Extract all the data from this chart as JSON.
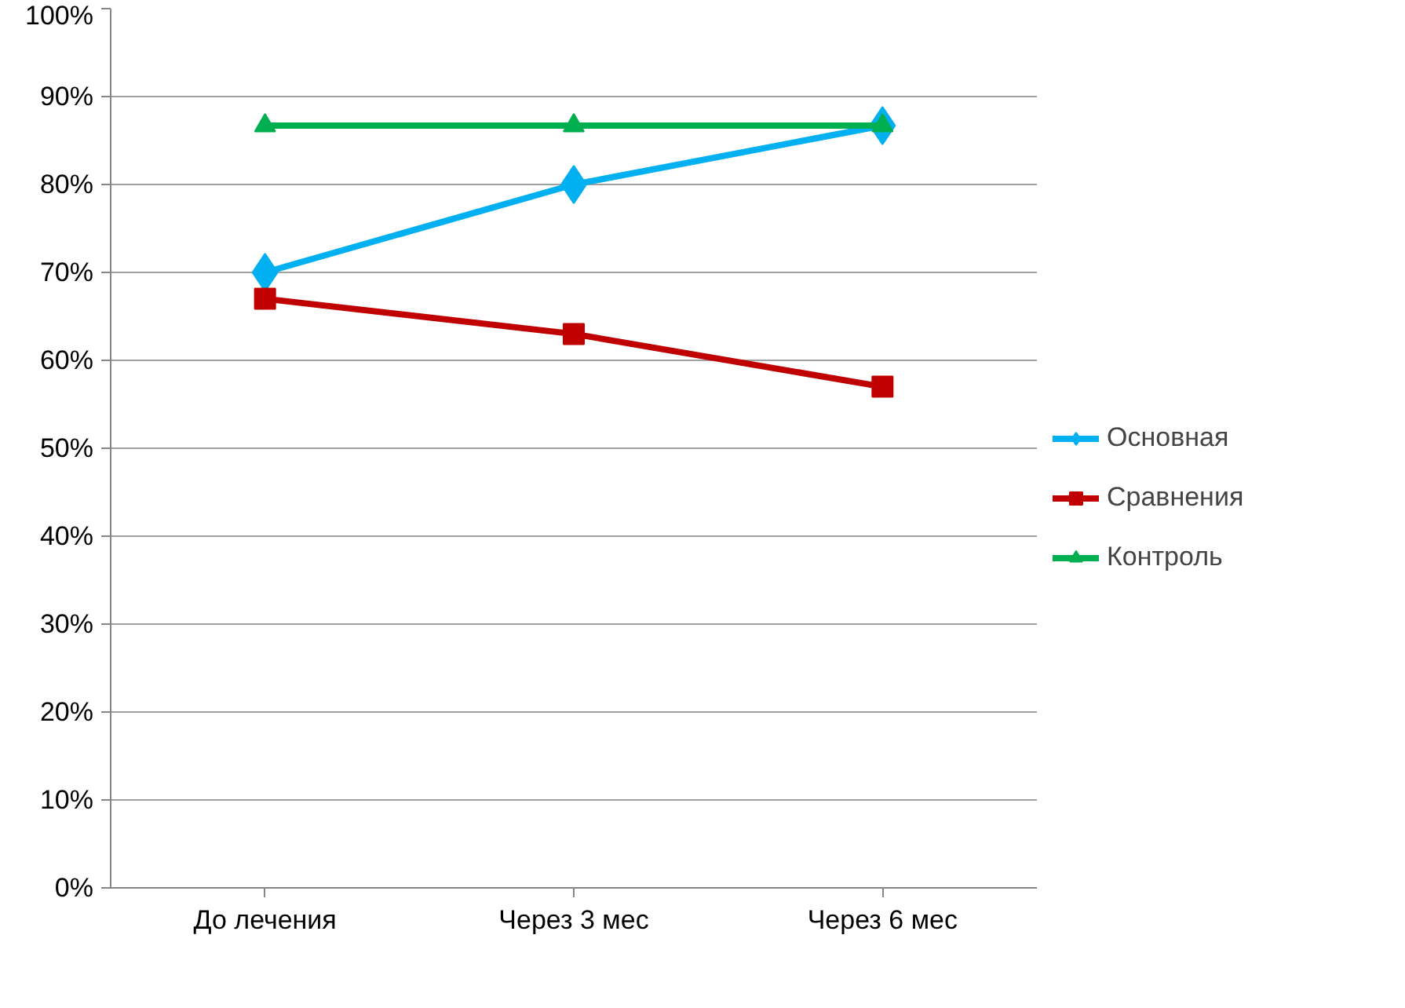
{
  "chart_data": {
    "type": "line",
    "categories": [
      "До лечения",
      "Через 3 мес",
      "Через 6 мес"
    ],
    "series": [
      {
        "name": "Основная",
        "color": "#00b0f0",
        "marker": "diamond",
        "values": [
          70,
          80,
          86.7
        ]
      },
      {
        "name": "Сравнения",
        "color": "#c00000",
        "marker": "square",
        "values": [
          67,
          63,
          57
        ]
      },
      {
        "name": "Контроль",
        "color": "#00b050",
        "marker": "triangle",
        "values": [
          86.7,
          86.7,
          86.7
        ]
      }
    ],
    "ylim": [
      0,
      100
    ],
    "yticks": [
      {
        "value": 0,
        "label": "0%"
      },
      {
        "value": 10,
        "label": "10%"
      },
      {
        "value": 20,
        "label": "20%"
      },
      {
        "value": 30,
        "label": "30%"
      },
      {
        "value": 40,
        "label": "40%"
      },
      {
        "value": 50,
        "label": "50%"
      },
      {
        "value": 60,
        "label": "60%"
      },
      {
        "value": 70,
        "label": "70%"
      },
      {
        "value": 80,
        "label": "80%"
      },
      {
        "value": 90,
        "label": "90%"
      },
      {
        "value": 100,
        "label": "100%"
      }
    ],
    "grid": "y",
    "legend": "right",
    "line_style": "solid"
  }
}
